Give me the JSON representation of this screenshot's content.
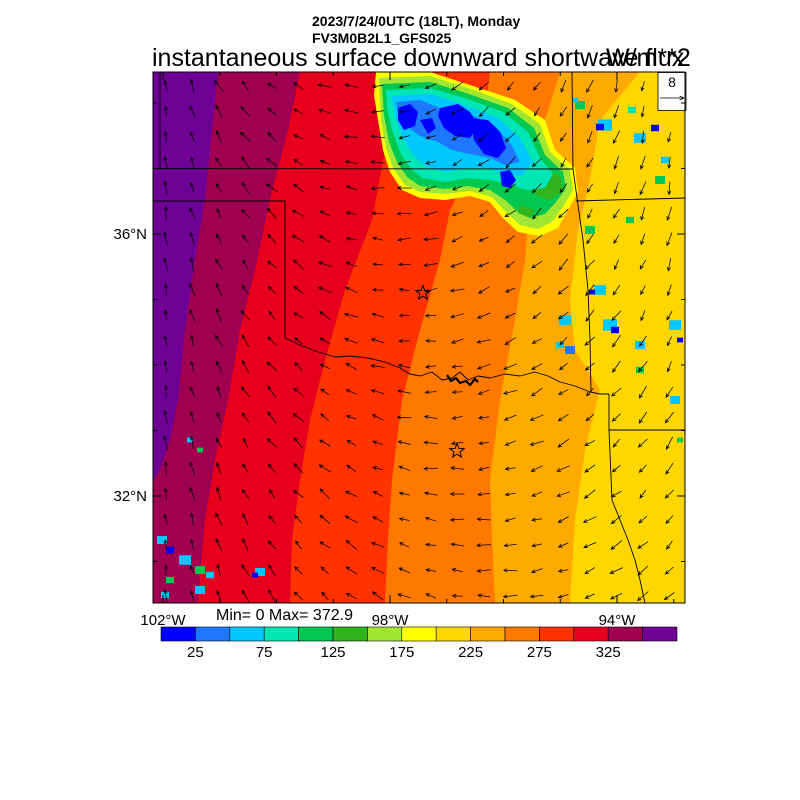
{
  "title": {
    "datetime": "2023/7/24/0UTC (18LT), Monday",
    "model": "FV3M0B2L1_GFS025",
    "variable": "instantaneous surface downward shortwave flux",
    "units": "W/m**2"
  },
  "vector_reference": {
    "magnitude": "8"
  },
  "axes": {
    "latitude_labels": [
      "36°N",
      "32°N"
    ],
    "longitude_labels": [
      "102°W",
      "98°W",
      "94°W"
    ]
  },
  "statistics": {
    "text": "Min= 0 Max= 372.9"
  },
  "colorbar": {
    "labels": [
      "25",
      "75",
      "125",
      "175",
      "225",
      "275",
      "325"
    ],
    "colors": [
      "#0000ff",
      "#1e78ff",
      "#00c8ff",
      "#00e6b4",
      "#00c850",
      "#32b41e",
      "#a0e632",
      "#ffff00",
      "#ffd700",
      "#ffaa00",
      "#ff7800",
      "#ff3200",
      "#e6001e",
      "#a00050",
      "#6e0096"
    ]
  },
  "markers": {
    "icon": "star-icon"
  }
}
